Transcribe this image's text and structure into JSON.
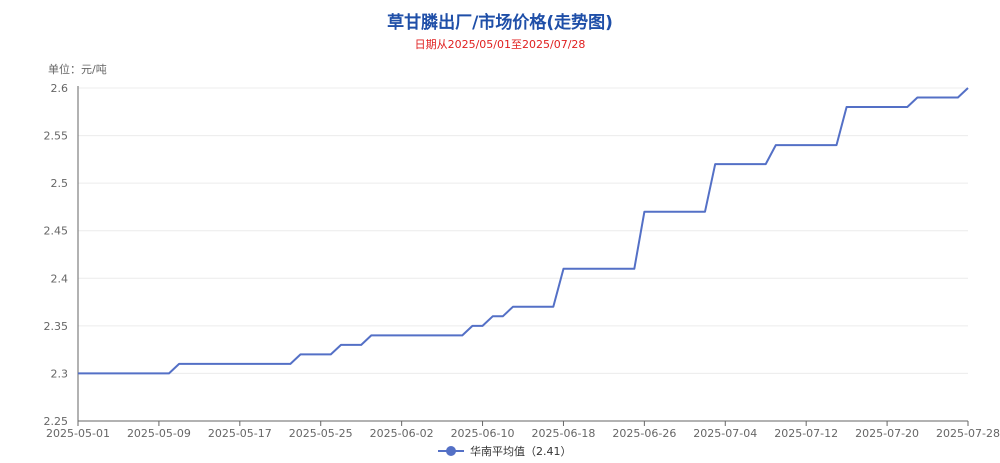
{
  "chart_data": {
    "type": "line",
    "title": "草甘膦出厂/市场价格(走势图)",
    "subtitle": "日期从2025/05/01至2025/07/28",
    "unit_label": "单位：元/吨",
    "ylim": [
      2.25,
      2.6
    ],
    "y_ticks": [
      "2.25",
      "2.3",
      "2.35",
      "2.4",
      "2.45",
      "2.5",
      "2.55",
      "2.6"
    ],
    "x_ticks": [
      "2025-05-01",
      "2025-05-09",
      "2025-05-17",
      "2025-05-25",
      "2025-06-02",
      "2025-06-10",
      "2025-06-18",
      "2025-06-26",
      "2025-07-04",
      "2025-07-12",
      "2025-07-20",
      "2025-07-28"
    ],
    "grid": true,
    "legend_position": "bottom-center",
    "color": "#5470c6",
    "series": [
      {
        "name": "华南平均值（2.41）",
        "points": [
          [
            "2025-05-01",
            2.3
          ],
          [
            "2025-05-10",
            2.3
          ],
          [
            "2025-05-11",
            2.31
          ],
          [
            "2025-05-22",
            2.31
          ],
          [
            "2025-05-23",
            2.32
          ],
          [
            "2025-05-26",
            2.32
          ],
          [
            "2025-05-27",
            2.33
          ],
          [
            "2025-05-29",
            2.33
          ],
          [
            "2025-05-30",
            2.34
          ],
          [
            "2025-06-08",
            2.34
          ],
          [
            "2025-06-09",
            2.35
          ],
          [
            "2025-06-10",
            2.35
          ],
          [
            "2025-06-11",
            2.36
          ],
          [
            "2025-06-12",
            2.36
          ],
          [
            "2025-06-13",
            2.37
          ],
          [
            "2025-06-17",
            2.37
          ],
          [
            "2025-06-18",
            2.41
          ],
          [
            "2025-06-25",
            2.41
          ],
          [
            "2025-06-26",
            2.47
          ],
          [
            "2025-07-02",
            2.47
          ],
          [
            "2025-07-03",
            2.52
          ],
          [
            "2025-07-08",
            2.52
          ],
          [
            "2025-07-09",
            2.54
          ],
          [
            "2025-07-15",
            2.54
          ],
          [
            "2025-07-16",
            2.58
          ],
          [
            "2025-07-22",
            2.58
          ],
          [
            "2025-07-23",
            2.59
          ],
          [
            "2025-07-27",
            2.59
          ],
          [
            "2025-07-28",
            2.6
          ]
        ]
      }
    ]
  }
}
